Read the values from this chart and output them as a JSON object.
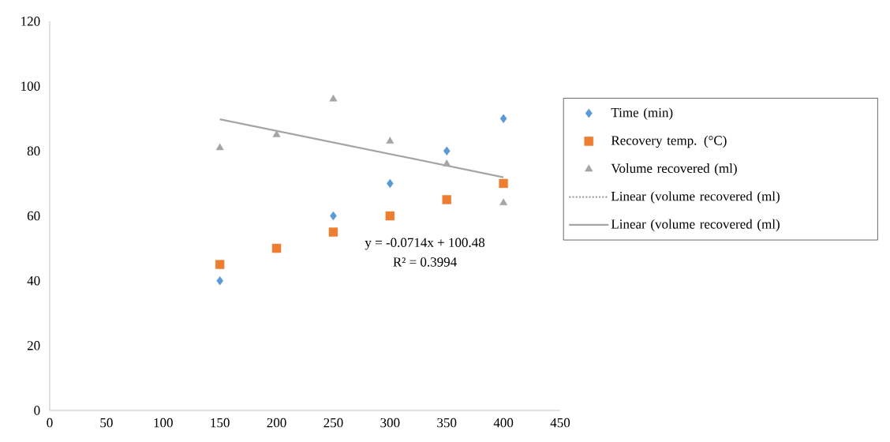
{
  "chart_data": {
    "type": "scatter",
    "x": [
      150,
      200,
      250,
      300,
      350,
      400
    ],
    "series": [
      {
        "name": "Time (min)",
        "color": "#5b9bd5",
        "marker": "diamond",
        "values": [
          40,
          null,
          60,
          70,
          80,
          90
        ]
      },
      {
        "name": "Recovery temp. (°C)",
        "color": "#ed7d31",
        "marker": "square",
        "values": [
          45,
          50,
          55,
          60,
          65,
          70
        ]
      },
      {
        "name": "Volume recovered (ml)",
        "color": "#a5a5a5",
        "marker": "triangle",
        "values": [
          81,
          85,
          96,
          83,
          76,
          64
        ]
      },
      {
        "name": "Linear (volume recovered (ml)",
        "type": "line",
        "line_style": "dotted",
        "color": "#a5a5a5",
        "values": [
          null,
          null,
          null,
          null,
          null,
          null
        ]
      },
      {
        "name": "Linear (volume recovered (ml)",
        "type": "line",
        "line_style": "solid",
        "color": "#a5a5a5",
        "x": [
          150,
          400
        ],
        "values": [
          89.8,
          71.9
        ]
      }
    ],
    "xlim": [
      0,
      450
    ],
    "xticks": [
      0,
      50,
      100,
      150,
      200,
      250,
      300,
      350,
      400,
      450
    ],
    "ylim": [
      0,
      120
    ],
    "yticks": [
      0,
      20,
      40,
      60,
      80,
      100,
      120
    ],
    "grid": false,
    "legend": "right",
    "annotations": [
      "y = -0.0714x + 100.48",
      "R² = 0.3994"
    ]
  }
}
